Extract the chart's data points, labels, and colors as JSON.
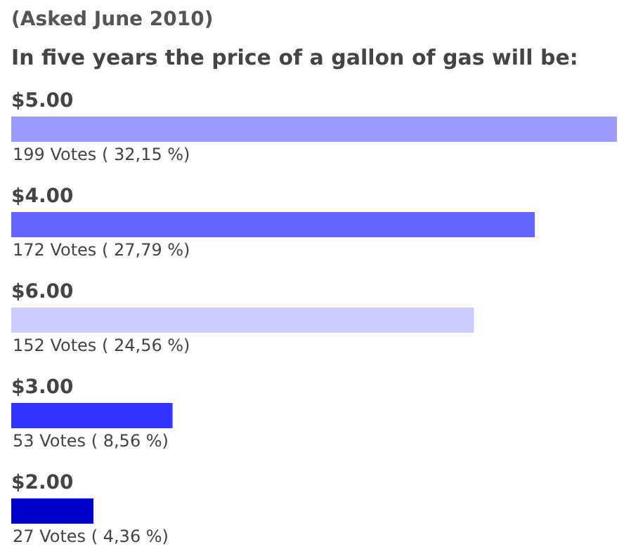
{
  "chart_data": {
    "type": "bar",
    "orientation": "horizontal",
    "title": "(Asked June 2010)",
    "subtitle": "In five years the price of a gallon of gas will be:",
    "categories": [
      "$5.00",
      "$4.00",
      "$6.00",
      "$3.00",
      "$2.00"
    ],
    "values": [
      199,
      172,
      152,
      53,
      27
    ],
    "colors": [
      "#9999ff",
      "#6666ff",
      "#ccccff",
      "#3333ff",
      "#0000cc"
    ],
    "value_labels": [
      "199 Votes ( 32,15 %)",
      "172 Votes ( 27,79 %)",
      "152 Votes ( 24,56 %)",
      "53 Votes ( 8,56 %)",
      "27 Votes ( 4,36 %)"
    ]
  }
}
